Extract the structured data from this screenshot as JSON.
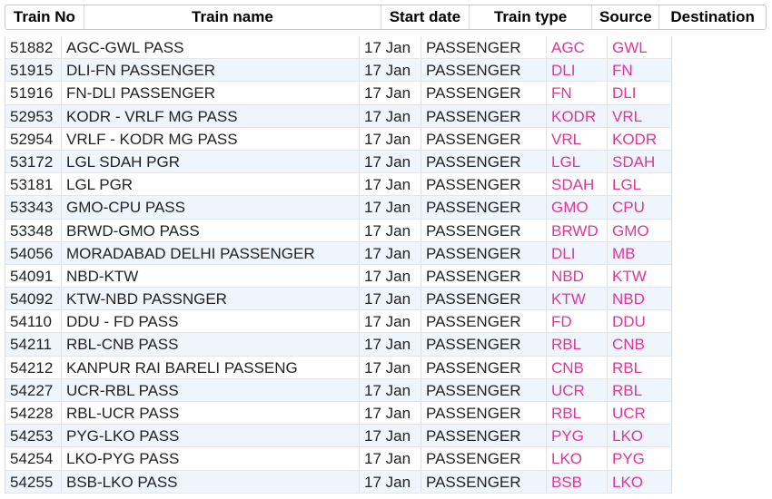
{
  "table": {
    "header": [
      "Train No",
      "Train name",
      "Start date",
      "Train type",
      "Source",
      "Destination"
    ],
    "rows": [
      [
        "51882",
        "AGC-GWL PASS",
        "17 Jan",
        "PASSENGER",
        "AGC",
        "GWL"
      ],
      [
        "51915",
        "DLI-FN PASSENGER",
        "17 Jan",
        "PASSENGER",
        "DLI",
        "FN"
      ],
      [
        "51916",
        "FN-DLI PASSENGER",
        "17 Jan",
        "PASSENGER",
        "FN",
        "DLI"
      ],
      [
        "52953",
        "KODR - VRLF MG PASS",
        "17 Jan",
        "PASSENGER",
        "KODR",
        "VRL"
      ],
      [
        "52954",
        "VRLF - KODR MG PASS",
        "17 Jan",
        "PASSENGER",
        "VRL",
        "KODR"
      ],
      [
        "53172",
        "LGL SDAH PGR",
        "17 Jan",
        "PASSENGER",
        "LGL",
        "SDAH"
      ],
      [
        "53181",
        "LGL PGR",
        "17 Jan",
        "PASSENGER",
        "SDAH",
        "LGL"
      ],
      [
        "53343",
        "GMO-CPU PASS",
        "17 Jan",
        "PASSENGER",
        "GMO",
        "CPU"
      ],
      [
        "53348",
        "BRWD-GMO PASS",
        "17 Jan",
        "PASSENGER",
        "BRWD",
        "GMO"
      ],
      [
        "54056",
        "MORADABAD DELHI PASSENGER",
        "17 Jan",
        "PASSENGER",
        "DLI",
        "MB"
      ],
      [
        "54091",
        "NBD-KTW",
        "17 Jan",
        "PASSENGER",
        "NBD",
        "KTW"
      ],
      [
        "54092",
        "KTW-NBD PASSNGER",
        "17 Jan",
        "PASSENGER",
        "KTW",
        "NBD"
      ],
      [
        "54110",
        "DDU - FD PASS",
        "17 Jan",
        "PASSENGER",
        "FD",
        "DDU"
      ],
      [
        "54211",
        "RBL-CNB PASS",
        "17 Jan",
        "PASSENGER",
        "RBL",
        "CNB"
      ],
      [
        "54212",
        "KANPUR RAI BARELI PASSENG",
        "17 Jan",
        "PASSENGER",
        "CNB",
        "RBL"
      ],
      [
        "54227",
        "UCR-RBL PASS",
        "17 Jan",
        "PASSENGER",
        "UCR",
        "RBL"
      ],
      [
        "54228",
        "RBL-UCR PASS",
        "17 Jan",
        "PASSENGER",
        "RBL",
        "UCR"
      ],
      [
        "54253",
        "PYG-LKO PASS",
        "17 Jan",
        "PASSENGER",
        "PYG",
        "LKO"
      ],
      [
        "54254",
        "LKO-PYG PASS",
        "17 Jan",
        "PASSENGER",
        "LKO",
        "PYG"
      ],
      [
        "54255",
        "BSB-LKO PASS",
        "17 Jan",
        "PASSENGER",
        "BSB",
        "LKO"
      ]
    ]
  }
}
